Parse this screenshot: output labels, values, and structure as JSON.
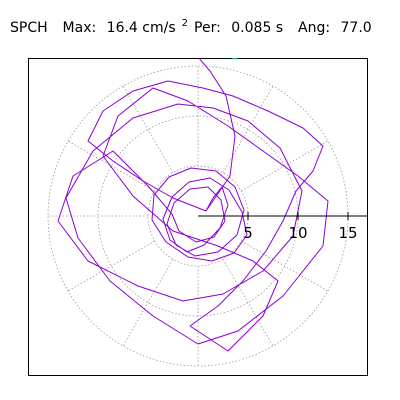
{
  "header": {
    "station": "SPCH",
    "max_label": "Max:",
    "max_value": "16.4 cm/s",
    "max_unit_sup": "2",
    "per_label": "Per:",
    "per_value": "0.085 s",
    "ang_label": "Ang:",
    "ang_value": "77.0"
  },
  "colors": {
    "trace": "#8a00d4",
    "grid": "#9a9a9a",
    "marker": "#18a36c"
  },
  "chart_data": {
    "type": "scatter",
    "subtype": "polar particle-motion hodogram",
    "title": "",
    "xlabel": "",
    "ylabel": "",
    "units": "cm/s^2",
    "max_amplitude": 16.4,
    "peak_angle_deg": 77.0,
    "radial_ticks": [
      5,
      10,
      15
    ],
    "radial_tick_labels": [
      "5",
      "10",
      "15"
    ],
    "grid_rings": [
      5,
      10,
      15
    ],
    "spoke_angles_deg": [
      0,
      30,
      60,
      90,
      120,
      150,
      180,
      210,
      240,
      270,
      300,
      330
    ],
    "grid": true,
    "series": [
      {
        "x": [
          0.8,
          1.5,
          2.4,
          3.0,
          2.2,
          0.6,
          -1.1,
          -2.8,
          -3.5,
          -2.6,
          -0.9,
          1.2,
          3.1,
          4.4,
          4.9,
          3.6,
          1.4,
          -1.0,
          -3.2,
          -4.6,
          -4.4,
          -2.9,
          -0.7,
          1.8,
          3.7,
          4.6,
          3.9,
          2.0,
          -0.3,
          -2.2,
          -3.1,
          -2.4,
          -0.8,
          1.0,
          2.3,
          2.7,
          1.6,
          -0.2,
          -1.9,
          -2.6
        ],
        "y": [
          0.5,
          1.8,
          2.9,
          1.1,
          -1.2,
          -2.9,
          -3.6,
          -2.4,
          -0.3,
          1.9,
          3.4,
          3.8,
          2.6,
          0.4,
          -1.9,
          -3.7,
          -4.5,
          -4.1,
          -2.6,
          -0.4,
          2.1,
          3.9,
          4.8,
          4.5,
          2.9,
          0.6,
          -1.9,
          -3.6,
          -4.0,
          -2.9,
          -0.8,
          1.3,
          2.7,
          2.9,
          1.6,
          -0.5,
          -2.1,
          -2.6,
          -1.5,
          0.2
        ]
      },
      {
        "x": [
          -2.6,
          -5.0,
          -8.5,
          -12.5,
          -14.0,
          -11.0,
          -6.0,
          -1.5,
          2.5,
          6.5,
          9.5,
          10.4,
          8.2,
          5.0,
          1.5,
          -2.0,
          -6.5,
          -10.5,
          -13.2,
          -12.0,
          -8.8,
          -4.5,
          0.0,
          4.0,
          8.5,
          12.5,
          13.0,
          10.0,
          6.5,
          3.0,
          -1.0,
          -4.5,
          -8.0,
          -9.5,
          -6.5,
          -2.5,
          2.0,
          5.5,
          8.0,
          6.5,
          3.0,
          -0.8
        ],
        "y": [
          0.2,
          3.0,
          6.5,
          4.0,
          -0.5,
          -4.5,
          -7.0,
          -8.5,
          -7.8,
          -5.5,
          -2.0,
          2.5,
          6.8,
          9.5,
          10.8,
          11.2,
          9.8,
          6.5,
          1.8,
          -2.2,
          -6.5,
          -10.0,
          -12.8,
          -11.5,
          -8.0,
          -3.0,
          1.5,
          4.0,
          6.5,
          9.0,
          11.5,
          12.8,
          10.0,
          6.0,
          2.0,
          -1.5,
          -3.0,
          -4.5,
          -6.5,
          -10.0,
          -13.5,
          -11.0
        ]
      },
      {
        "x": [
          -0.8,
          2.0,
          4.5,
          6.8,
          8.5,
          9.8,
          11.5,
          12.5,
          10.5,
          7.0,
          3.5,
          0.5,
          -3.0,
          -6.5,
          -9.5,
          -11.0,
          -8.5,
          -5.5,
          -2.5,
          0.8,
          3.2,
          3.7,
          2.8,
          1.2,
          0.0
        ],
        "y": [
          -11.0,
          -9.0,
          -6.5,
          -3.5,
          -0.5,
          2.5,
          4.5,
          7.0,
          8.8,
          10.5,
          12.0,
          12.8,
          13.5,
          12.5,
          10.5,
          7.5,
          5.5,
          3.5,
          1.8,
          0.5,
          4.0,
          8.0,
          12.0,
          14.5,
          15.9
        ]
      }
    ],
    "peak_marker": {
      "x": 3.68,
      "y": 15.98
    }
  }
}
